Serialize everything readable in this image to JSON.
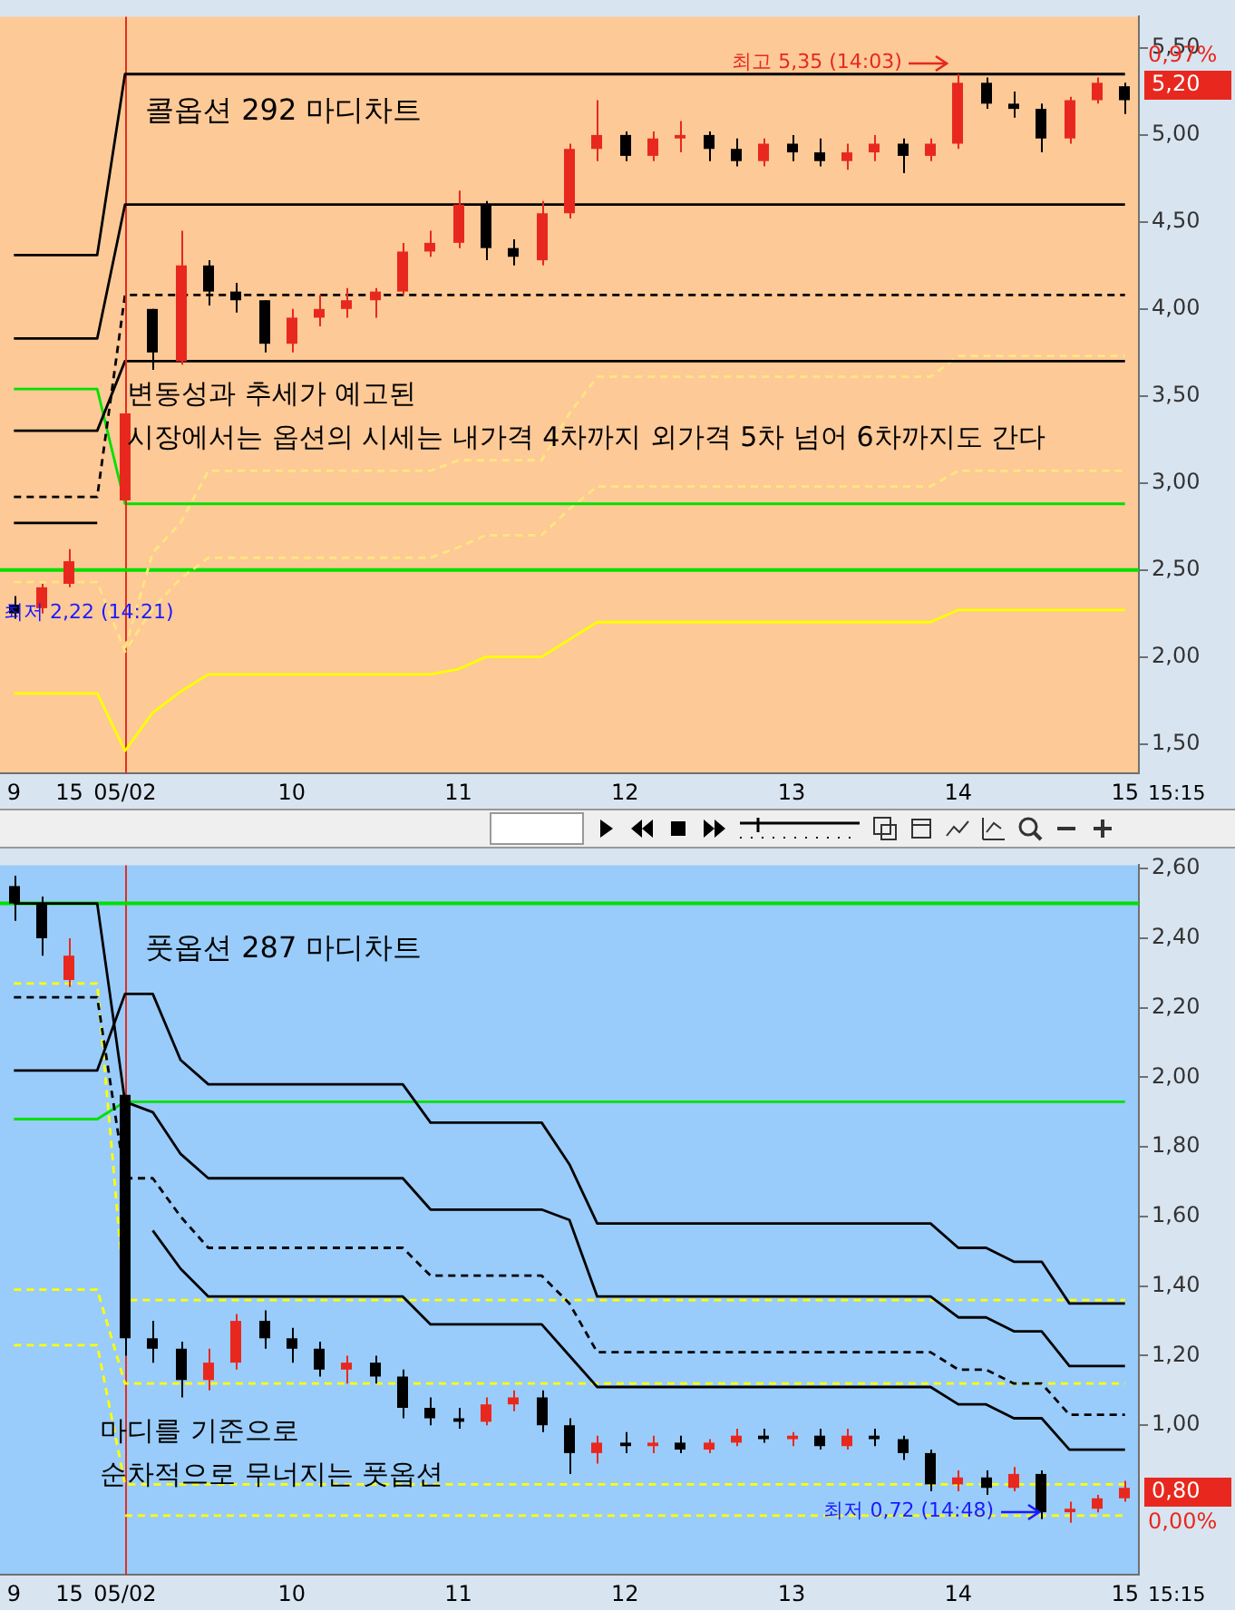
{
  "chart_data": [
    {
      "type": "candlestick",
      "title": "콜옵션 292 마디차트",
      "categories": [
        "9",
        null,
        "15",
        null,
        "05/02",
        null,
        null,
        null,
        null,
        null,
        "10",
        null,
        null,
        null,
        null,
        null,
        "11",
        null,
        null,
        null,
        null,
        null,
        "12",
        null,
        null,
        null,
        null,
        null,
        "13",
        null,
        null,
        null,
        null,
        null,
        "14",
        null,
        null,
        null,
        null,
        null,
        "15"
      ],
      "ohlc": [
        [
          2.3,
          2.35,
          2.22,
          2.25
        ],
        [
          2.28,
          2.42,
          2.25,
          2.4
        ],
        [
          2.42,
          2.62,
          2.4,
          2.55
        ],
        null,
        [
          2.9,
          4.55,
          2.87,
          3.4
        ],
        [
          4.0,
          4.0,
          3.65,
          3.75
        ],
        [
          3.7,
          4.45,
          3.68,
          4.25
        ],
        [
          4.25,
          4.28,
          4.02,
          4.1
        ],
        [
          4.1,
          4.15,
          3.98,
          4.05
        ],
        [
          4.05,
          4.05,
          3.75,
          3.8
        ],
        [
          3.8,
          4.0,
          3.75,
          3.95
        ],
        [
          3.95,
          4.08,
          3.9,
          4.0
        ],
        [
          4.0,
          4.12,
          3.95,
          4.05
        ],
        [
          4.05,
          4.12,
          3.95,
          4.1
        ],
        [
          4.1,
          4.38,
          4.08,
          4.33
        ],
        [
          4.33,
          4.45,
          4.3,
          4.38
        ],
        [
          4.38,
          4.68,
          4.35,
          4.6
        ],
        [
          4.6,
          4.62,
          4.28,
          4.35
        ],
        [
          4.35,
          4.4,
          4.25,
          4.3
        ],
        [
          4.28,
          4.62,
          4.25,
          4.55
        ],
        [
          4.55,
          4.95,
          4.52,
          4.92
        ],
        [
          4.92,
          5.2,
          4.85,
          5.0
        ],
        [
          5.0,
          5.02,
          4.85,
          4.88
        ],
        [
          4.88,
          5.02,
          4.85,
          4.98
        ],
        [
          4.98,
          5.08,
          4.9,
          5.0
        ],
        [
          5.0,
          5.02,
          4.85,
          4.92
        ],
        [
          4.92,
          4.98,
          4.82,
          4.85
        ],
        [
          4.85,
          4.98,
          4.82,
          4.95
        ],
        [
          4.95,
          5.0,
          4.85,
          4.9
        ],
        [
          4.9,
          4.98,
          4.82,
          4.85
        ],
        [
          4.85,
          4.95,
          4.8,
          4.9
        ],
        [
          4.9,
          5.0,
          4.85,
          4.95
        ],
        [
          4.95,
          4.98,
          4.78,
          4.88
        ],
        [
          4.88,
          4.98,
          4.85,
          4.95
        ],
        [
          4.95,
          5.35,
          4.92,
          5.3
        ],
        [
          5.3,
          5.33,
          5.15,
          5.18
        ],
        [
          5.18,
          5.25,
          5.1,
          5.15
        ],
        [
          5.15,
          5.18,
          4.9,
          4.98
        ],
        [
          4.98,
          5.22,
          4.95,
          5.2
        ],
        [
          5.2,
          5.33,
          5.18,
          5.3
        ],
        [
          5.28,
          5.3,
          5.12,
          5.2
        ]
      ],
      "colors": [
        "#000000",
        "#e8281e",
        "#e8281e",
        null,
        "#e8281e",
        "#000000",
        "#e8281e",
        "#000000",
        "#000000",
        "#000000",
        "#e8281e",
        "#e8281e",
        "#e8281e",
        "#e8281e",
        "#e8281e",
        "#e8281e",
        "#e8281e",
        "#000000",
        "#000000",
        "#e8281e",
        "#e8281e",
        "#e8281e",
        "#000000",
        "#e8281e",
        "#e8281e",
        "#000000",
        "#000000",
        "#e8281e",
        "#000000",
        "#000000",
        "#e8281e",
        "#e8281e",
        "#000000",
        "#e8281e",
        "#e8281e",
        "#000000",
        "#000000",
        "#000000",
        "#e8281e",
        "#e8281e",
        "#000000"
      ],
      "series": [
        {
          "type": "line",
          "color": "#000000",
          "values": [
            4.31,
            4.31,
            4.31,
            4.31,
            5.35,
            5.35,
            5.35,
            5.35,
            5.35,
            5.35,
            5.35,
            5.35,
            5.35,
            5.35,
            5.35,
            5.35,
            5.35,
            5.35,
            5.35,
            5.35,
            5.35,
            5.35,
            5.35,
            5.35,
            5.35,
            5.35,
            5.35,
            5.35,
            5.35,
            5.35,
            5.35,
            5.35,
            5.35,
            5.35,
            5.35,
            5.35,
            5.35,
            5.35,
            5.35,
            5.35,
            5.35
          ]
        },
        {
          "type": "line",
          "color": "#000000",
          "values": [
            3.83,
            3.83,
            3.83,
            3.83,
            4.6,
            4.6,
            4.6,
            4.6,
            4.6,
            4.6,
            4.6,
            4.6,
            4.6,
            4.6,
            4.6,
            4.6,
            4.6,
            4.6,
            4.6,
            4.6,
            4.6,
            4.6,
            4.6,
            4.6,
            4.6,
            4.6,
            4.6,
            4.6,
            4.6,
            4.6,
            4.6,
            4.6,
            4.6,
            4.6,
            4.6,
            4.6,
            4.6,
            4.6,
            4.6,
            4.6,
            4.6
          ]
        },
        {
          "type": "line",
          "color": "#000000",
          "line_style": "dashed",
          "values": [
            2.92,
            2.92,
            2.92,
            2.92,
            4.08,
            4.08,
            4.08,
            4.08,
            4.08,
            4.08,
            4.08,
            4.08,
            4.08,
            4.08,
            4.08,
            4.08,
            4.08,
            4.08,
            4.08,
            4.08,
            4.08,
            4.08,
            4.08,
            4.08,
            4.08,
            4.08,
            4.08,
            4.08,
            4.08,
            4.08,
            4.08,
            4.08,
            4.08,
            4.08,
            4.08,
            4.08,
            4.08,
            4.08,
            4.08,
            4.08,
            4.08
          ]
        },
        {
          "type": "line",
          "color": "#000000",
          "values": [
            3.3,
            3.3,
            3.3,
            3.3,
            3.7,
            3.7,
            3.7,
            3.7,
            3.7,
            3.7,
            3.7,
            3.7,
            3.7,
            3.7,
            3.7,
            3.7,
            3.7,
            3.7,
            3.7,
            3.7,
            3.7,
            3.7,
            3.7,
            3.7,
            3.7,
            3.7,
            3.7,
            3.7,
            3.7,
            3.7,
            3.7,
            3.7,
            3.7,
            3.7,
            3.7,
            3.7,
            3.7,
            3.7,
            3.7,
            3.7,
            3.7
          ]
        },
        {
          "type": "line",
          "color": "#000000",
          "values": [
            2.77,
            2.77,
            2.77,
            2.77,
            null,
            null,
            null,
            null,
            null,
            null,
            null,
            null,
            null,
            null,
            null,
            null,
            null,
            null,
            null,
            null,
            null,
            null,
            null,
            null,
            null,
            null,
            null,
            null,
            null,
            null,
            null,
            null,
            null,
            null,
            null,
            null,
            null,
            null,
            null,
            null,
            null
          ]
        },
        {
          "type": "line",
          "color": "#00e000",
          "values": [
            3.54,
            3.54,
            3.54,
            3.54,
            2.88,
            2.88,
            2.88,
            2.88,
            2.88,
            2.88,
            2.88,
            2.88,
            2.88,
            2.88,
            2.88,
            2.88,
            2.88,
            2.88,
            2.88,
            2.88,
            2.88,
            2.88,
            2.88,
            2.88,
            2.88,
            2.88,
            2.88,
            2.88,
            2.88,
            2.88,
            2.88,
            2.88,
            2.88,
            2.88,
            2.88,
            2.88,
            2.88,
            2.88,
            2.88,
            2.88,
            2.88
          ]
        },
        {
          "type": "line",
          "color": "#ffff00",
          "values": [
            1.79,
            1.79,
            1.79,
            1.79,
            1.46,
            1.68,
            1.8,
            1.9,
            1.9,
            1.9,
            1.9,
            1.9,
            1.9,
            1.9,
            1.9,
            1.9,
            1.93,
            2.0,
            2.0,
            2.0,
            2.1,
            2.2,
            2.2,
            2.2,
            2.2,
            2.2,
            2.2,
            2.2,
            2.2,
            2.2,
            2.2,
            2.2,
            2.2,
            2.2,
            2.27,
            2.27,
            2.27,
            2.27,
            2.27,
            2.27,
            2.27
          ]
        },
        {
          "type": "line",
          "color": "#ffe680",
          "line_style": "dashed",
          "values": [
            null,
            null,
            null,
            null,
            2.05,
            2.6,
            2.77,
            3.07,
            3.07,
            3.07,
            3.07,
            3.07,
            3.07,
            3.07,
            3.07,
            3.07,
            3.13,
            3.13,
            3.13,
            3.13,
            3.4,
            3.61,
            3.61,
            3.61,
            3.61,
            3.61,
            3.61,
            3.61,
            3.61,
            3.61,
            3.61,
            3.61,
            3.61,
            3.61,
            3.73,
            3.73,
            3.73,
            3.73,
            3.73,
            3.73,
            3.73
          ]
        },
        {
          "type": "line",
          "color": "#ffe680",
          "line_style": "dashed",
          "values": [
            2.43,
            2.43,
            2.43,
            2.43,
            2.03,
            2.28,
            2.45,
            2.57,
            2.57,
            2.57,
            2.57,
            2.57,
            2.57,
            2.57,
            2.57,
            2.57,
            2.63,
            2.7,
            2.7,
            2.7,
            2.85,
            2.98,
            2.98,
            2.98,
            2.98,
            2.98,
            2.98,
            2.98,
            2.98,
            2.98,
            2.98,
            2.98,
            2.98,
            2.98,
            3.07,
            3.07,
            3.07,
            3.07,
            3.07,
            3.07,
            3.07
          ]
        }
      ],
      "ylim": [
        1.33,
        5.68
      ],
      "yticks": [
        {
          "value": 1.5,
          "label": "1,50"
        },
        {
          "value": 2.0,
          "label": "2,00"
        },
        {
          "value": 2.5,
          "label": "2,50"
        },
        {
          "value": 3.0,
          "label": "3,00"
        },
        {
          "value": 3.5,
          "label": "3,50"
        },
        {
          "value": 4.0,
          "label": "4,00"
        },
        {
          "value": 4.5,
          "label": "4,50"
        },
        {
          "value": 5.0,
          "label": "5,00"
        },
        {
          "value": 5.5,
          "label": "5,50"
        }
      ],
      "ref_lines": [
        {
          "axis": "x",
          "value": "05/02",
          "color": "#e03020"
        },
        {
          "axis": "y",
          "value": 2.5,
          "color": "#00e000"
        }
      ],
      "annotations": [
        "변동성과 추세가 예고된",
        "시장에서는 옵션의 시세는 내가격 4차까지 외가격 5차 넘어 6차까지도 간다",
        {
          "text": "최고 5,35 (14:03)",
          "x": "14",
          "y": 5.35
        },
        "최저 2,22 (14:21)",
        "5,20",
        "0,97%",
        "15:15"
      ]
    },
    {
      "type": "candlestick",
      "title": "풋옵션 287 마디차트",
      "categories": [
        "9",
        null,
        "15",
        null,
        "05/02",
        null,
        null,
        null,
        null,
        null,
        "10",
        null,
        null,
        null,
        null,
        null,
        "11",
        null,
        null,
        null,
        null,
        null,
        "12",
        null,
        null,
        null,
        null,
        null,
        "13",
        null,
        null,
        null,
        null,
        null,
        "14",
        null,
        null,
        null,
        null,
        null,
        "15"
      ],
      "ohlc": [
        [
          2.55,
          2.58,
          2.45,
          2.5
        ],
        [
          2.5,
          2.52,
          2.35,
          2.4
        ],
        [
          2.28,
          2.4,
          2.26,
          2.35
        ],
        null,
        [
          1.95,
          1.95,
          1.2,
          1.25
        ],
        [
          1.25,
          1.3,
          1.18,
          1.22
        ],
        [
          1.22,
          1.24,
          1.08,
          1.13
        ],
        [
          1.13,
          1.22,
          1.1,
          1.18
        ],
        [
          1.18,
          1.32,
          1.16,
          1.3
        ],
        [
          1.3,
          1.33,
          1.22,
          1.25
        ],
        [
          1.25,
          1.28,
          1.18,
          1.22
        ],
        [
          1.22,
          1.24,
          1.14,
          1.16
        ],
        [
          1.16,
          1.2,
          1.12,
          1.18
        ],
        [
          1.18,
          1.2,
          1.12,
          1.14
        ],
        [
          1.14,
          1.16,
          1.02,
          1.05
        ],
        [
          1.05,
          1.08,
          1.0,
          1.02
        ],
        [
          1.02,
          1.05,
          0.99,
          1.01
        ],
        [
          1.01,
          1.08,
          1.0,
          1.06
        ],
        [
          1.06,
          1.1,
          1.04,
          1.08
        ],
        [
          1.08,
          1.1,
          0.98,
          1.0
        ],
        [
          1.0,
          1.02,
          0.86,
          0.92
        ],
        [
          0.92,
          0.97,
          0.89,
          0.95
        ],
        [
          0.95,
          0.98,
          0.92,
          0.94
        ],
        [
          0.94,
          0.97,
          0.92,
          0.95
        ],
        [
          0.95,
          0.97,
          0.92,
          0.93
        ],
        [
          0.93,
          0.96,
          0.92,
          0.95
        ],
        [
          0.95,
          0.99,
          0.94,
          0.97
        ],
        [
          0.97,
          0.99,
          0.95,
          0.96
        ],
        [
          0.96,
          0.98,
          0.94,
          0.97
        ],
        [
          0.97,
          0.99,
          0.93,
          0.94
        ],
        [
          0.94,
          0.99,
          0.93,
          0.97
        ],
        [
          0.97,
          0.99,
          0.94,
          0.96
        ],
        [
          0.96,
          0.97,
          0.9,
          0.92
        ],
        [
          0.92,
          0.93,
          0.81,
          0.83
        ],
        [
          0.83,
          0.87,
          0.81,
          0.85
        ],
        [
          0.85,
          0.87,
          0.8,
          0.82
        ],
        [
          0.82,
          0.88,
          0.81,
          0.86
        ],
        [
          0.86,
          0.87,
          0.73,
          0.75
        ],
        [
          0.75,
          0.78,
          0.72,
          0.76
        ],
        [
          0.76,
          0.8,
          0.75,
          0.79
        ],
        [
          0.79,
          0.84,
          0.78,
          0.82
        ]
      ],
      "colors": [
        "#000000",
        "#000000",
        "#e8281e",
        null,
        "#000000",
        "#000000",
        "#000000",
        "#e8281e",
        "#e8281e",
        "#000000",
        "#000000",
        "#000000",
        "#e8281e",
        "#000000",
        "#000000",
        "#000000",
        "#000000",
        "#e8281e",
        "#e8281e",
        "#000000",
        "#000000",
        "#e8281e",
        "#000000",
        "#e8281e",
        "#000000",
        "#e8281e",
        "#e8281e",
        "#000000",
        "#e8281e",
        "#000000",
        "#e8281e",
        "#000000",
        "#000000",
        "#000000",
        "#e8281e",
        "#000000",
        "#e8281e",
        "#000000",
        "#e8281e",
        "#e8281e",
        "#e8281e"
      ],
      "series": [
        {
          "type": "line",
          "color": "#000000",
          "values": [
            2.5,
            2.5,
            2.5,
            2.5,
            1.93,
            1.9,
            1.78,
            1.71,
            1.71,
            1.71,
            1.71,
            1.71,
            1.71,
            1.71,
            1.71,
            1.62,
            1.62,
            1.62,
            1.62,
            1.62,
            1.59,
            1.37,
            1.37,
            1.37,
            1.37,
            1.37,
            1.37,
            1.37,
            1.37,
            1.37,
            1.37,
            1.37,
            1.37,
            1.37,
            1.31,
            1.31,
            1.27,
            1.27,
            1.17,
            1.17,
            1.17
          ]
        },
        {
          "type": "line",
          "color": "#000000",
          "values": [
            2.02,
            2.02,
            2.02,
            2.02,
            2.24,
            2.24,
            2.05,
            1.98,
            1.98,
            1.98,
            1.98,
            1.98,
            1.98,
            1.98,
            1.98,
            1.87,
            1.87,
            1.87,
            1.87,
            1.87,
            1.75,
            1.58,
            1.58,
            1.58,
            1.58,
            1.58,
            1.58,
            1.58,
            1.58,
            1.58,
            1.58,
            1.58,
            1.58,
            1.58,
            1.51,
            1.51,
            1.47,
            1.47,
            1.35,
            1.35,
            1.35
          ]
        },
        {
          "type": "line",
          "color": "#000000",
          "line_style": "dashed",
          "values": [
            2.23,
            2.23,
            2.23,
            2.23,
            1.71,
            1.71,
            1.6,
            1.51,
            1.51,
            1.51,
            1.51,
            1.51,
            1.51,
            1.51,
            1.51,
            1.43,
            1.43,
            1.43,
            1.43,
            1.43,
            1.35,
            1.21,
            1.21,
            1.21,
            1.21,
            1.21,
            1.21,
            1.21,
            1.21,
            1.21,
            1.21,
            1.21,
            1.21,
            1.21,
            1.16,
            1.16,
            1.12,
            1.12,
            1.03,
            1.03,
            1.03
          ]
        },
        {
          "type": "line",
          "color": "#000000",
          "values": [
            null,
            null,
            null,
            null,
            null,
            1.56,
            1.45,
            1.37,
            1.37,
            1.37,
            1.37,
            1.37,
            1.37,
            1.37,
            1.37,
            1.29,
            1.29,
            1.29,
            1.29,
            1.29,
            1.2,
            1.11,
            1.11,
            1.11,
            1.11,
            1.11,
            1.11,
            1.11,
            1.11,
            1.11,
            1.11,
            1.11,
            1.11,
            1.11,
            1.06,
            1.06,
            1.02,
            1.02,
            0.93,
            0.93,
            0.93
          ]
        },
        {
          "type": "line",
          "color": "#00e000",
          "values": [
            1.88,
            1.88,
            1.88,
            1.88,
            1.93,
            1.93,
            1.93,
            1.93,
            1.93,
            1.93,
            1.93,
            1.93,
            1.93,
            1.93,
            1.93,
            1.93,
            1.93,
            1.93,
            1.93,
            1.93,
            1.93,
            1.93,
            1.93,
            1.93,
            1.93,
            1.93,
            1.93,
            1.93,
            1.93,
            1.93,
            1.93,
            1.93,
            1.93,
            1.93,
            1.93,
            1.93,
            1.93,
            1.93,
            1.93,
            1.93,
            1.93
          ]
        },
        {
          "type": "line",
          "color": "#ffff00",
          "line_style": "dashed",
          "values": [
            2.27,
            2.27,
            2.27,
            2.27,
            1.36,
            1.36,
            1.36,
            1.36,
            1.36,
            1.36,
            1.36,
            1.36,
            1.36,
            1.36,
            1.36,
            1.36,
            1.36,
            1.36,
            1.36,
            1.36,
            1.36,
            1.36,
            1.36,
            1.36,
            1.36,
            1.36,
            1.36,
            1.36,
            1.36,
            1.36,
            1.36,
            1.36,
            1.36,
            1.36,
            1.36,
            1.36,
            1.36,
            1.36,
            1.36,
            1.36,
            1.36
          ]
        },
        {
          "type": "line",
          "color": "#ffff00",
          "line_style": "dashed",
          "values": [
            1.39,
            1.39,
            1.39,
            1.39,
            1.12,
            1.12,
            1.12,
            1.12,
            1.12,
            1.12,
            1.12,
            1.12,
            1.12,
            1.12,
            null,
            1.12,
            1.12,
            1.12,
            1.12,
            1.12,
            1.12,
            1.12,
            1.12,
            1.12,
            1.12,
            1.12,
            1.12,
            1.12,
            1.12,
            1.12,
            1.12,
            1.12,
            1.12,
            1.12,
            1.12,
            1.12,
            1.12,
            1.12,
            1.12,
            1.12,
            1.12
          ]
        },
        {
          "type": "line",
          "color": "#ffff00",
          "line_style": "dashed",
          "values": [
            1.23,
            1.23,
            1.23,
            1.23,
            0.83,
            0.83,
            0.83,
            0.83,
            0.83,
            0.83,
            0.83,
            0.83,
            0.83,
            0.83,
            0.83,
            0.83,
            0.83,
            0.83,
            0.83,
            0.83,
            0.83,
            0.83,
            0.83,
            0.83,
            0.83,
            0.83,
            0.83,
            0.83,
            0.83,
            0.83,
            0.83,
            0.83,
            0.83,
            0.83,
            0.83,
            0.83,
            0.83,
            0.83,
            0.83,
            0.83,
            0.83
          ]
        },
        {
          "type": "line",
          "color": "#ffff00",
          "line_style": "dashed",
          "values": [
            null,
            null,
            null,
            null,
            0.74,
            0.74,
            0.74,
            0.74,
            0.74,
            0.74,
            0.74,
            0.74,
            0.74,
            0.74,
            0.74,
            0.74,
            0.74,
            0.74,
            0.74,
            0.74,
            0.74,
            0.74,
            0.74,
            0.74,
            0.74,
            0.74,
            0.74,
            0.74,
            0.74,
            0.74,
            0.74,
            0.74,
            0.74,
            0.74,
            0.74,
            0.74,
            0.74,
            0.74,
            0.74,
            0.74,
            0.74
          ]
        }
      ],
      "ylim": [
        0.57,
        2.61
      ],
      "yticks": [
        {
          "value": 1.0,
          "label": "1,00"
        },
        {
          "value": 1.2,
          "label": "1,20"
        },
        {
          "value": 1.4,
          "label": "1,40"
        },
        {
          "value": 1.6,
          "label": "1,60"
        },
        {
          "value": 1.8,
          "label": "1,80"
        },
        {
          "value": 2.0,
          "label": "2,00"
        },
        {
          "value": 2.2,
          "label": "2,20"
        },
        {
          "value": 2.4,
          "label": "2,40"
        },
        {
          "value": 2.6,
          "label": "2,60"
        }
      ],
      "ref_lines": [
        {
          "axis": "x",
          "value": "05/02",
          "color": "#e03020"
        },
        {
          "axis": "y",
          "value": 2.5,
          "color": "#00e000"
        }
      ],
      "annotations": [
        "마디를 기준으로",
        "순차적으로 무너지는 풋옵션",
        {
          "text": "최저 0,72 (14:48)",
          "y": 0.72
        },
        "0,80",
        "0,00%",
        "15:15"
      ]
    }
  ]
}
